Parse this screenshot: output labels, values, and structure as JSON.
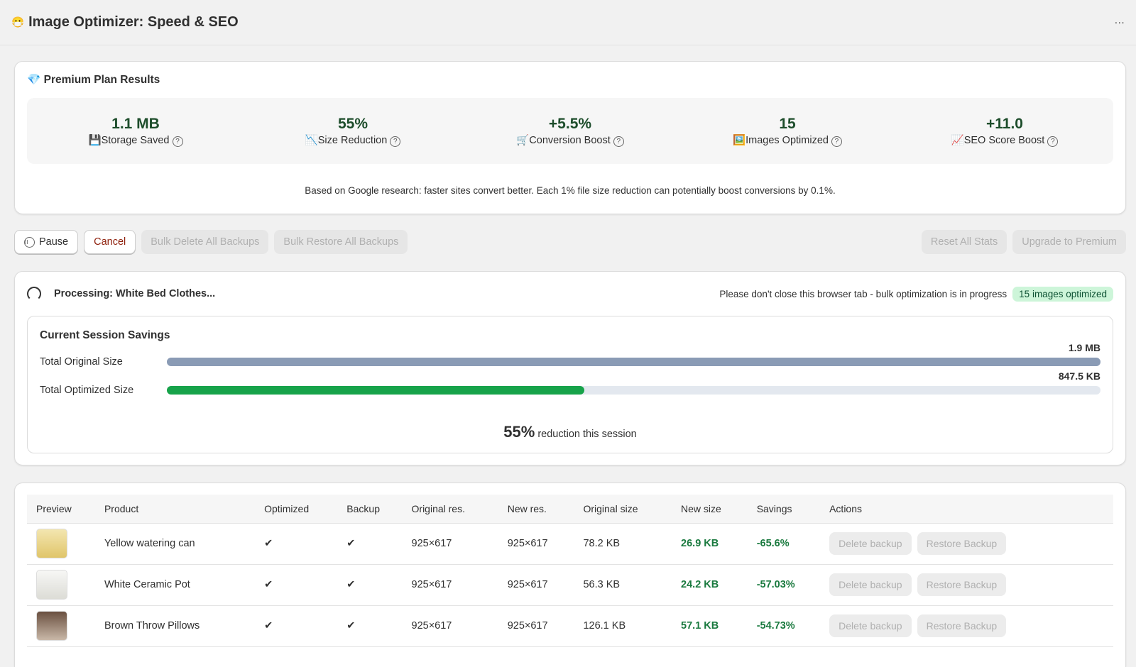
{
  "header": {
    "icon": "😷",
    "title": "Image Optimizer: Speed & SEO",
    "menu": "···"
  },
  "plan": {
    "icon": "💎",
    "title": "Premium Plan Results",
    "stats": [
      {
        "value": "1.1 MB",
        "icon": "💾",
        "label": "Storage Saved",
        "help": "?"
      },
      {
        "value": "55%",
        "icon": "📉",
        "label": "Size Reduction",
        "help": "?"
      },
      {
        "value": "+5.5%",
        "icon": "🛒",
        "label": "Conversion Boost",
        "help": "?"
      },
      {
        "value": "15",
        "icon": "🖼️",
        "label": "Images Optimized",
        "help": "?"
      },
      {
        "value": "+11.0",
        "icon": "📈",
        "label": "SEO Score Boost",
        "help": "?"
      }
    ],
    "note": "Based on Google research: faster sites convert better. Each 1% file size reduction can potentially boost conversions by 0.1%."
  },
  "buttons": {
    "pause": "Pause",
    "cancel": "Cancel",
    "bulk_delete": "Bulk Delete All Backups",
    "bulk_restore": "Bulk Restore All Backups",
    "reset": "Reset All Stats",
    "upgrade": "Upgrade to Premium"
  },
  "processing": {
    "status": "Processing: White Bed Clothes...",
    "notice": "Please don't close this browser tab - bulk optimization is in progress",
    "badge": "15 images optimized"
  },
  "savings": {
    "title": "Current Session Savings",
    "rows": [
      {
        "label": "Total Original Size",
        "value": "1.9 MB"
      },
      {
        "label": "Total Optimized Size",
        "value": "847.5 KB"
      }
    ],
    "summary_value": "55%",
    "summary_text": "reduction this session"
  },
  "table": {
    "headers": [
      "Preview",
      "Product",
      "Optimized",
      "Backup",
      "Original res.",
      "New res.",
      "Original size",
      "New size",
      "Savings",
      "Actions"
    ],
    "rows": [
      {
        "product": "Yellow watering can",
        "optimized": "✔",
        "backup": "✔",
        "original_res": "925×617",
        "new_res": "925×617",
        "original_size": "78.2 KB",
        "new_size": "26.9 KB",
        "savings": "-65.6%",
        "actions": [
          "Delete backup",
          "Restore Backup"
        ]
      },
      {
        "product": "White Ceramic Pot",
        "optimized": "✔",
        "backup": "✔",
        "original_res": "925×617",
        "new_res": "925×617",
        "original_size": "56.3 KB",
        "new_size": "24.2 KB",
        "savings": "-57.03%",
        "actions": [
          "Delete backup",
          "Restore Backup"
        ]
      },
      {
        "product": "Brown Throw Pillows",
        "optimized": "✔",
        "backup": "✔",
        "original_res": "925×617",
        "new_res": "925×617",
        "original_size": "126.1 KB",
        "new_size": "57.1 KB",
        "savings": "-54.73%",
        "actions": [
          "Delete backup",
          "Restore Backup"
        ]
      }
    ]
  }
}
